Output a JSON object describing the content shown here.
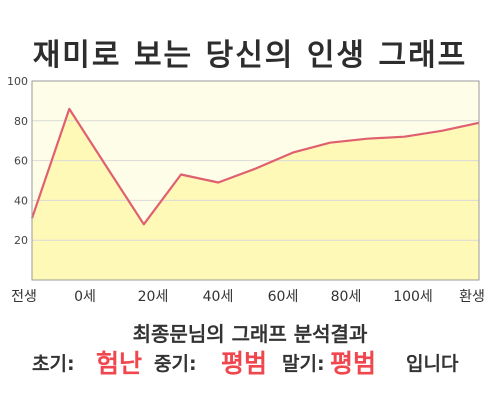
{
  "chart_data": {
    "type": "area",
    "title": "재미로 보는 당신의 인생 그래프",
    "x_labels": [
      "전생",
      "0세",
      "20세",
      "40세",
      "60세",
      "80세",
      "100세",
      "환생"
    ],
    "y_ticks": [
      "20",
      "40",
      "60",
      "80",
      "100"
    ],
    "ylim": [
      0,
      100
    ],
    "series": [
      {
        "values": [
          31,
          86,
          57,
          28,
          53,
          49,
          56,
          64,
          69,
          71,
          72,
          75,
          79
        ]
      }
    ],
    "grid": true,
    "colors": {
      "plot_background": "#fefee8",
      "area_fill": "#fff9b8",
      "line": "#e06070",
      "grid": "#d9d9d9"
    }
  },
  "result": {
    "title": "최종문님의 그래프 분석결과",
    "early_label": "초기:",
    "early_value": "험난",
    "mid_label": "중기:",
    "mid_value": "평범",
    "late_label": "말기:",
    "late_value": "평범",
    "ending": "입니다"
  }
}
